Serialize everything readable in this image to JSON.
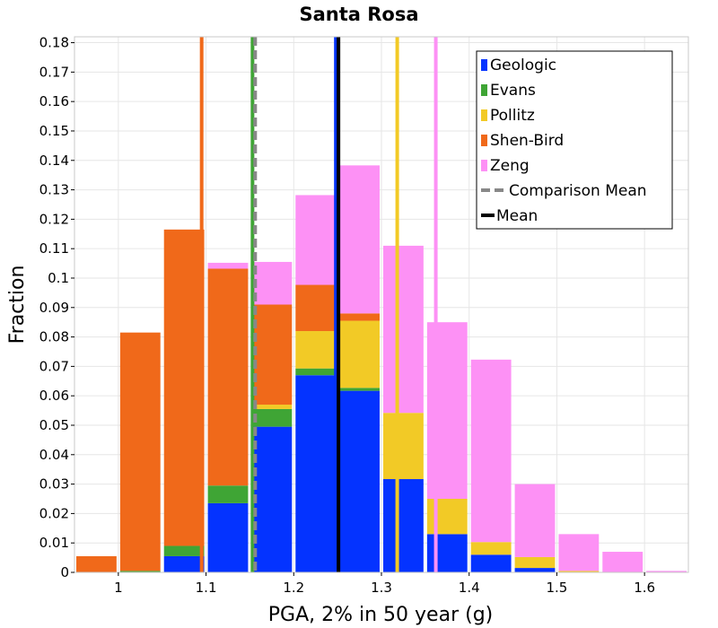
{
  "chart_data": {
    "type": "bar",
    "stacked": true,
    "title": "Santa Rosa",
    "xlabel": "PGA, 2% in 50 year (g)",
    "ylabel": "Fraction",
    "xlim": [
      0.95,
      1.65
    ],
    "ylim": [
      0,
      0.182
    ],
    "x_ticks": [
      "1",
      "1.1",
      "1.2",
      "1.3",
      "1.4",
      "1.5",
      "1.6"
    ],
    "y_ticks": [
      "0",
      "0.01",
      "0.02",
      "0.03",
      "0.04",
      "0.05",
      "0.06",
      "0.07",
      "0.08",
      "0.09",
      "0.1",
      "0.11",
      "0.12",
      "0.13",
      "0.14",
      "0.15",
      "0.16",
      "0.17",
      "0.18"
    ],
    "grid": true,
    "bin_width": 0.05,
    "bin_centers": [
      0.975,
      1.025,
      1.075,
      1.125,
      1.175,
      1.225,
      1.275,
      1.325,
      1.375,
      1.425,
      1.475,
      1.525,
      1.575,
      1.625
    ],
    "series": [
      {
        "name": "Geologic",
        "color": "#0433ff",
        "values": [
          0,
          0,
          0.0055,
          0.0235,
          0.0495,
          0.067,
          0.0617,
          0.0317,
          0.013,
          0.006,
          0.0015,
          0,
          0,
          0
        ]
      },
      {
        "name": "Evans",
        "color": "#3fa535",
        "values": [
          0,
          0.0005,
          0.0035,
          0.006,
          0.006,
          0.0023,
          0.001,
          0,
          0,
          0,
          0,
          0,
          0,
          0
        ]
      },
      {
        "name": "Pollitz",
        "color": "#f2ca26",
        "values": [
          0,
          0,
          0,
          0,
          0.0015,
          0.0127,
          0.0228,
          0.0225,
          0.012,
          0.0043,
          0.0037,
          0.0005,
          0,
          0
        ]
      },
      {
        "name": "Shen-Bird",
        "color": "#f0691a",
        "values": [
          0.0055,
          0.081,
          0.1075,
          0.0737,
          0.034,
          0.0157,
          0.0025,
          0,
          0,
          0,
          0,
          0,
          0,
          0
        ]
      },
      {
        "name": "Zeng",
        "color": "#fd91f5",
        "values": [
          0,
          0,
          0,
          0.002,
          0.0145,
          0.0305,
          0.0503,
          0.0568,
          0.06,
          0.062,
          0.0248,
          0.0125,
          0.007,
          0.0005
        ]
      }
    ],
    "vertical_lines": [
      {
        "series": "Geologic",
        "x": 1.248,
        "color": "#0433ff",
        "style": "solid"
      },
      {
        "series": "Evans",
        "x": 1.153,
        "color": "#3fa535",
        "style": "solid"
      },
      {
        "series": "Pollitz",
        "x": 1.318,
        "color": "#f2ca26",
        "style": "solid"
      },
      {
        "series": "Shen-Bird",
        "x": 1.095,
        "color": "#f0691a",
        "style": "solid"
      },
      {
        "series": "Zeng",
        "x": 1.362,
        "color": "#fd91f5",
        "style": "solid"
      },
      {
        "series": "Comparison Mean",
        "x": 1.156,
        "color": "#888888",
        "style": "dashed"
      },
      {
        "series": "Mean",
        "x": 1.251,
        "color": "#000000",
        "style": "solid"
      }
    ],
    "legend": {
      "position": "top-right",
      "entries": [
        {
          "label": "Geologic",
          "color": "#0433ff",
          "kind": "box"
        },
        {
          "label": "Evans",
          "color": "#3fa535",
          "kind": "box"
        },
        {
          "label": "Pollitz",
          "color": "#f2ca26",
          "kind": "box"
        },
        {
          "label": "Shen-Bird",
          "color": "#f0691a",
          "kind": "box"
        },
        {
          "label": "Zeng",
          "color": "#fd91f5",
          "kind": "box"
        },
        {
          "label": "Comparison Mean",
          "color": "#888888",
          "kind": "dashed-line"
        },
        {
          "label": "Mean",
          "color": "#000000",
          "kind": "line"
        }
      ]
    }
  }
}
